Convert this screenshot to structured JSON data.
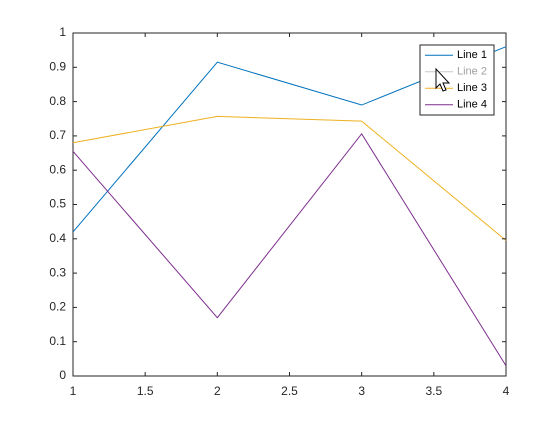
{
  "chart_data": {
    "type": "line",
    "x": [
      1,
      2,
      3,
      4
    ],
    "series": [
      {
        "name": "Line 1",
        "color": "#0072BD",
        "values": [
          0.42,
          0.915,
          0.79,
          0.96
        ]
      },
      {
        "name": "Line 2",
        "color": "#D95319",
        "values": [
          null,
          null,
          null,
          null
        ],
        "visible": false
      },
      {
        "name": "Line 3",
        "color": "#EDB120",
        "values": [
          0.68,
          0.757,
          0.743,
          0.395
        ]
      },
      {
        "name": "Line 4",
        "color": "#7E2F8E",
        "values": [
          0.655,
          0.17,
          0.706,
          0.03
        ]
      }
    ],
    "xlim": [
      1,
      4
    ],
    "xticks": [
      1,
      1.5,
      2,
      2.5,
      3,
      3.5,
      4
    ],
    "ylim": [
      0,
      1
    ],
    "yticks": [
      0,
      0.1,
      0.2,
      0.3,
      0.4,
      0.5,
      0.6,
      0.7,
      0.8,
      0.9,
      1
    ],
    "grid": false,
    "legend": "northeast"
  }
}
